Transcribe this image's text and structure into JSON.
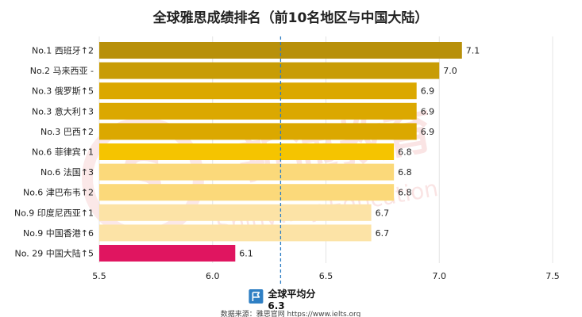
{
  "chart_data": {
    "type": "bar",
    "orientation": "horizontal",
    "title": "全球雅思成绩排名（前10名地区与中国大陆）",
    "categories": [
      "No.1 西班牙↑2",
      "No.2 马来西亚 -",
      "No.3 俄罗斯↑5",
      "No.3 意大利↑3",
      "No.3 巴西↑2",
      "No.6 菲律宾↑1",
      "No.6 法国↑3",
      "No.6 津巴布韦↑2",
      "No.9 印度尼西亚↑1",
      "No.9 中国香港↑6",
      "No. 29 中国大陆↑5"
    ],
    "values": [
      7.1,
      7.0,
      6.9,
      6.9,
      6.9,
      6.8,
      6.8,
      6.8,
      6.7,
      6.7,
      6.1
    ],
    "value_labels": [
      "7.1",
      "7.0",
      "6.9",
      "6.9",
      "6.9",
      "6.8",
      "6.8",
      "6.8",
      "6.7",
      "6.7",
      "6.1"
    ],
    "bar_colors": [
      "#b8900a",
      "#c89c05",
      "#dba800",
      "#dba800",
      "#dba800",
      "#f5c400",
      "#fbd97a",
      "#fbd97a",
      "#fce3a6",
      "#fce3a6",
      "#e01560"
    ],
    "xlim": [
      5.5,
      7.5
    ],
    "xticks": [
      "5.5",
      "6.0",
      "6.5",
      "7.0",
      "7.5"
    ],
    "xlabel": "",
    "ylabel": "",
    "grid": "vertical",
    "reference_line": {
      "value": 6.3,
      "label": "全球平均分",
      "value_label": "6.3",
      "color": "#2f7fc4"
    }
  },
  "watermark": {
    "brand": "新通教育",
    "sub": "Shinyway Education",
    "logo_letter": "S",
    "color": "#e98a8a"
  },
  "icons": {
    "average_marker": "flag-icon"
  },
  "source_note": "数据来源：雅思官网 https://www.ielts.org"
}
